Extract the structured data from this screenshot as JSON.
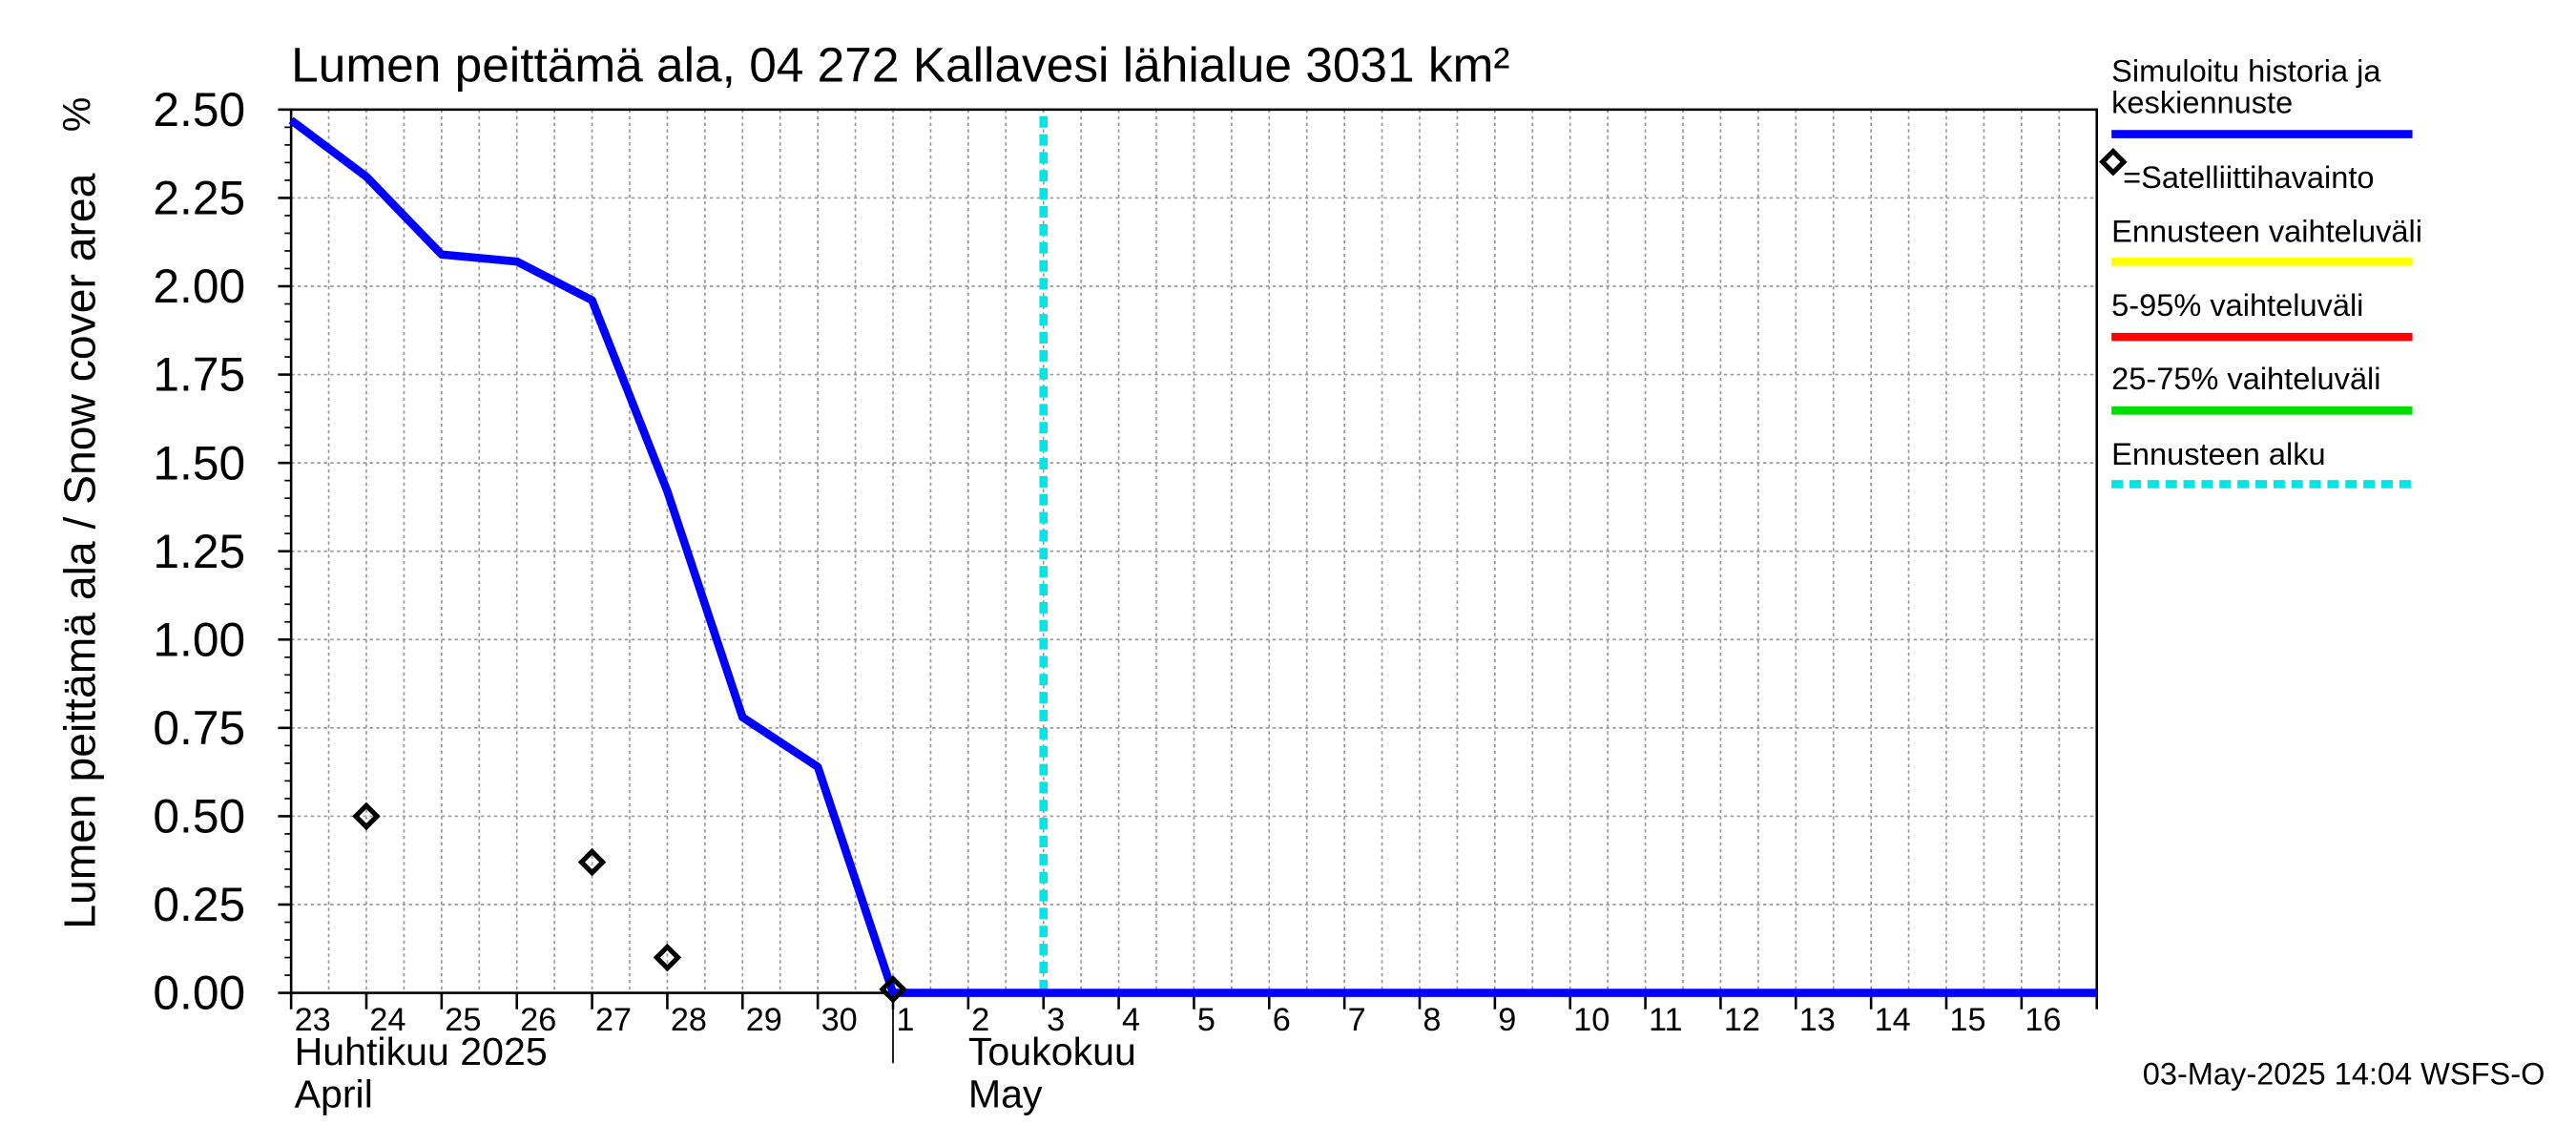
{
  "chart_data": {
    "type": "line",
    "title": "Lumen peittämä ala, 04 272 Kallavesi lähialue 3031 km²",
    "ylabel": "Lumen peittämä ala / Snow cover area",
    "yunit": "%",
    "ylim": [
      0,
      2.5
    ],
    "yticks": [
      "0.00",
      "0.25",
      "0.50",
      "0.75",
      "1.00",
      "1.25",
      "1.50",
      "1.75",
      "2.00",
      "2.25",
      "2.50"
    ],
    "xlim": [
      0,
      24
    ],
    "day_labels": [
      "23",
      "24",
      "25",
      "26",
      "27",
      "28",
      "29",
      "30",
      "1",
      "2",
      "3",
      "4",
      "5",
      "6",
      "7",
      "8",
      "9",
      "10",
      "11",
      "12",
      "13",
      "14",
      "15",
      "16"
    ],
    "month_labels": {
      "april_fi": "Huhtikuu  2025",
      "april_en": "April",
      "may_fi": "Toukokuu",
      "may_en": "May"
    },
    "month_boundary_x": 8,
    "forecast_start_x": 10.0,
    "series": [
      {
        "name": "Simuloitu historia ja keskiennuste",
        "color": "#0000ff",
        "points": [
          [
            0,
            2.47
          ],
          [
            1,
            2.31
          ],
          [
            2,
            2.09
          ],
          [
            3,
            2.07
          ],
          [
            4,
            1.96
          ],
          [
            5,
            1.42
          ],
          [
            6,
            0.78
          ],
          [
            7,
            0.64
          ],
          [
            8,
            0.0
          ],
          [
            24,
            0.0
          ]
        ]
      }
    ],
    "satellite_points": [
      [
        1,
        0.5
      ],
      [
        4,
        0.37
      ],
      [
        5,
        0.1
      ],
      [
        8,
        0.01
      ]
    ],
    "legend": [
      {
        "label": "Simuloitu historia ja keskiennuste",
        "color": "#0000ff",
        "style": "solid"
      },
      {
        "label": "=Satelliittihavainto",
        "color": "#000000",
        "style": "marker"
      },
      {
        "label": "Ennusteen vaihteluväli",
        "color": "#ffff00",
        "style": "solid"
      },
      {
        "label": "5-95% vaihteluväli",
        "color": "#ff0000",
        "style": "solid"
      },
      {
        "label": "25-75% vaihteluväli",
        "color": "#00dd00",
        "style": "solid"
      },
      {
        "label": "Ennusteen alku",
        "color": "#00e5e5",
        "style": "dashed"
      }
    ],
    "timestamp": "03-May-2025 14:04 WSFS-O",
    "colors": {
      "main": "#0000ff",
      "forecast": "#00e5e5",
      "grid": "#9a9a9a"
    }
  }
}
